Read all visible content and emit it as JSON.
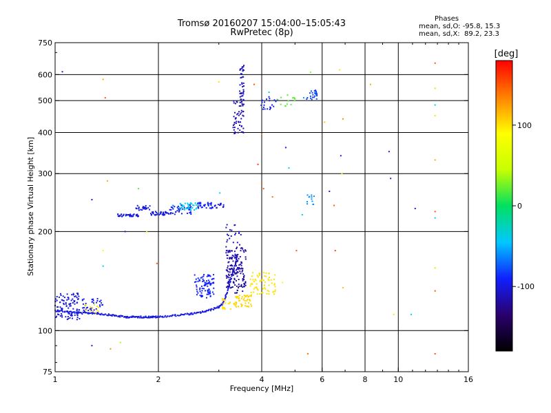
{
  "header": {
    "title_line1": "Tromsø 20160207 15:04:00–15:05:43",
    "title_line2": "RwPretec (8p)",
    "phase_title": "Phases",
    "phase_line1": "mean, sd,O: -95.8, 15.3",
    "phase_line2": "mean, sd,X:  89.2, 23.3"
  },
  "chart_data": {
    "type": "scatter",
    "title": "Tromsø 20160207 15:04:00–15:05:43",
    "subtitle": "RwPretec (8p)",
    "xlabel": "Frequency [MHz]",
    "ylabel": "Stationary phase Virtual Height [km]",
    "x_scale": "log",
    "y_scale": "log",
    "xlim": [
      1,
      16
    ],
    "ylim": [
      75,
      750
    ],
    "x_ticks": [
      1,
      2,
      4,
      6,
      8,
      10,
      16
    ],
    "x_gridlines": [
      2,
      4,
      6,
      8,
      10
    ],
    "y_ticks": [
      75,
      100,
      200,
      300,
      400,
      500,
      600,
      750
    ],
    "y_gridlines": [
      100,
      200,
      300,
      400,
      500,
      600
    ],
    "colorbar": {
      "label": "[deg]",
      "range": [
        -180,
        180
      ],
      "ticks": [
        -100,
        0,
        100
      ],
      "colors": [
        "#000000",
        "#2a006e",
        "#1020ff",
        "#00c8ff",
        "#00e060",
        "#c8ff00",
        "#ffff00",
        "#ff8000",
        "#ff0000"
      ]
    },
    "series": [
      {
        "type": "polyline",
        "points": [
          [
            1.0,
            115
          ],
          [
            1.1,
            114
          ],
          [
            1.2,
            113
          ],
          [
            1.3,
            113
          ],
          [
            1.4,
            112
          ],
          [
            1.5,
            111
          ],
          [
            1.6,
            110
          ],
          [
            1.7,
            110
          ],
          [
            1.8,
            110
          ],
          [
            1.9,
            110
          ],
          [
            2.0,
            110
          ],
          [
            2.2,
            111
          ],
          [
            2.4,
            112
          ],
          [
            2.6,
            113
          ],
          [
            2.8,
            115
          ],
          [
            3.0,
            118
          ],
          [
            3.1,
            122
          ],
          [
            3.2,
            135
          ],
          [
            3.3,
            150
          ],
          [
            3.4,
            170
          ]
        ],
        "phase": -100
      },
      {
        "type": "clusters",
        "clusters": [
          {
            "xr": [
              1.0,
              1.18
            ],
            "yr": [
              108,
              130
            ],
            "n": 110,
            "phase": -100
          },
          {
            "xr": [
              1.2,
              1.38
            ],
            "yr": [
              112,
              125
            ],
            "n": 40,
            "phase": -95
          },
          {
            "xr": [
              1.2,
              1.35
            ],
            "yr": [
              113,
              120
            ],
            "n": 14,
            "phase": 100
          },
          {
            "xr": [
              1.52,
              1.75
            ],
            "yr": [
              222,
              226
            ],
            "n": 40,
            "phase": -100
          },
          {
            "xr": [
              1.72,
              1.9
            ],
            "yr": [
              232,
              240
            ],
            "n": 25,
            "phase": -100
          },
          {
            "xr": [
              1.9,
              2.2
            ],
            "yr": [
              224,
              230
            ],
            "n": 40,
            "phase": -100
          },
          {
            "xr": [
              2.15,
              2.5
            ],
            "yr": [
              225,
              242
            ],
            "n": 40,
            "phase": -95
          },
          {
            "xr": [
              2.3,
              2.6
            ],
            "yr": [
              232,
              244
            ],
            "n": 35,
            "phase": -40
          },
          {
            "xr": [
              2.6,
              2.9
            ],
            "yr": [
              235,
              245
            ],
            "n": 40,
            "phase": -90
          },
          {
            "xr": [
              2.9,
              3.1
            ],
            "yr": [
              236,
              244
            ],
            "n": 15,
            "phase": -100
          },
          {
            "xr": [
              2.55,
              2.9
            ],
            "yr": [
              125,
              148
            ],
            "n": 90,
            "phase": -90
          },
          {
            "xr": [
              3.05,
              3.25
            ],
            "yr": [
              115,
              125
            ],
            "n": 20,
            "phase": 100
          },
          {
            "xr": [
              3.3,
              3.75
            ],
            "yr": [
              118,
              128
            ],
            "n": 55,
            "phase": 105
          },
          {
            "xr": [
              3.7,
              4.4
            ],
            "yr": [
              128,
              150
            ],
            "n": 70,
            "phase": 100
          },
          {
            "xr": [
              3.15,
              3.6
            ],
            "yr": [
              130,
              180
            ],
            "n": 140,
            "phase": -120
          },
          {
            "xr": [
              3.15,
              3.5
            ],
            "yr": [
              150,
              210
            ],
            "n": 50,
            "phase": -110
          },
          {
            "xr": [
              3.3,
              3.55
            ],
            "yr": [
              395,
              500
            ],
            "n": 55,
            "phase": -115
          },
          {
            "xr": [
              3.45,
              3.55
            ],
            "yr": [
              500,
              640
            ],
            "n": 40,
            "phase": -110
          },
          {
            "xr": [
              3.95,
              4.5
            ],
            "yr": [
              470,
              520
            ],
            "n": 22,
            "phase": -95
          },
          {
            "xr": [
              4.4,
              5.0
            ],
            "yr": [
              480,
              520
            ],
            "n": 14,
            "phase": 20
          },
          {
            "xr": [
              5.4,
              5.8
            ],
            "yr": [
              500,
              540
            ],
            "n": 25,
            "phase": -80
          },
          {
            "xr": [
              5.4,
              5.7
            ],
            "yr": [
              240,
              260
            ],
            "n": 12,
            "phase": -60
          }
        ]
      },
      {
        "type": "points",
        "points": [
          [
            1.05,
            612,
            -100
          ],
          [
            1.28,
            250,
            -100
          ],
          [
            1.38,
            580,
            120
          ],
          [
            1.4,
            510,
            150
          ],
          [
            1.42,
            285,
            120
          ],
          [
            1.6,
            200,
            -100
          ],
          [
            1.75,
            270,
            20
          ],
          [
            1.85,
            200,
            100
          ],
          [
            1.98,
            160,
            150
          ],
          [
            2.2,
            240,
            -40
          ],
          [
            2.6,
            240,
            20
          ],
          [
            3.0,
            570,
            100
          ],
          [
            3.02,
            262,
            -40
          ],
          [
            3.8,
            560,
            150
          ],
          [
            3.9,
            320,
            160
          ],
          [
            4.0,
            395,
            140
          ],
          [
            4.0,
            280,
            150
          ],
          [
            4.05,
            270,
            150
          ],
          [
            4.2,
            530,
            -40
          ],
          [
            4.3,
            255,
            140
          ],
          [
            4.6,
            140,
            80
          ],
          [
            4.7,
            360,
            -100
          ],
          [
            4.8,
            312,
            -40
          ],
          [
            5.05,
            175,
            150
          ],
          [
            5.25,
            225,
            -40
          ],
          [
            5.3,
            510,
            -60
          ],
          [
            5.45,
            85,
            140
          ],
          [
            5.55,
            610,
            30
          ],
          [
            6.1,
            430,
            110
          ],
          [
            6.3,
            265,
            -100
          ],
          [
            6.5,
            240,
            150
          ],
          [
            6.55,
            175,
            160
          ],
          [
            6.75,
            620,
            100
          ],
          [
            6.8,
            340,
            -100
          ],
          [
            6.85,
            300,
            60
          ],
          [
            6.9,
            440,
            130
          ],
          [
            6.9,
            135,
            110
          ],
          [
            8.3,
            560,
            120
          ],
          [
            9.4,
            350,
            -100
          ],
          [
            9.5,
            290,
            -100
          ],
          [
            9.7,
            112,
            100
          ],
          [
            10.9,
            112,
            -40
          ],
          [
            11.2,
            235,
            -100
          ],
          [
            12.8,
            650,
            150
          ],
          [
            12.8,
            545,
            40
          ],
          [
            12.8,
            485,
            -40
          ],
          [
            12.8,
            450,
            100
          ],
          [
            12.8,
            330,
            120
          ],
          [
            12.8,
            230,
            150
          ],
          [
            12.8,
            220,
            -40
          ],
          [
            12.8,
            155,
            40
          ],
          [
            12.8,
            132,
            150
          ],
          [
            12.8,
            85,
            150
          ],
          [
            1.28,
            90,
            -100
          ],
          [
            1.38,
            175,
            80
          ],
          [
            1.38,
            157,
            -40
          ],
          [
            1.55,
            92,
            40
          ],
          [
            1.45,
            88,
            130
          ]
        ]
      }
    ]
  }
}
